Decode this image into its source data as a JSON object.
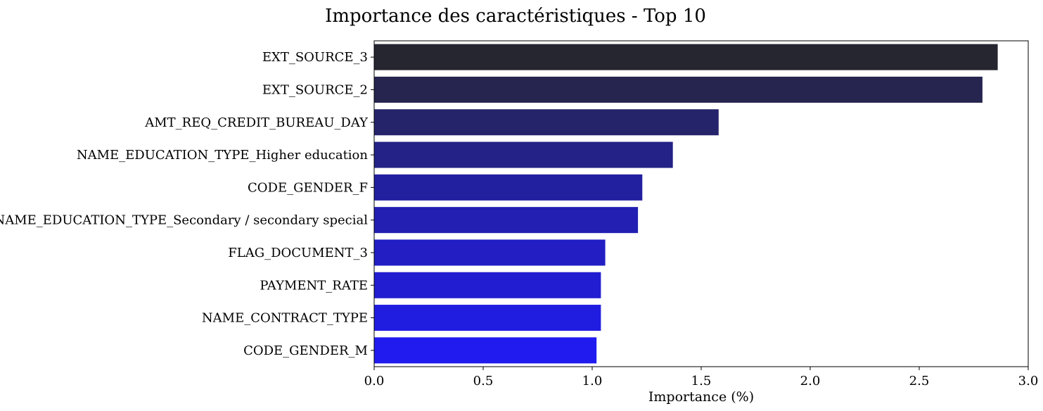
{
  "chart_data": {
    "type": "bar",
    "orientation": "horizontal",
    "title": "Importance des caractéristiques - Top 10",
    "xlabel": "Importance (%)",
    "ylabel": "",
    "xlim": [
      0,
      3.0
    ],
    "xticks": [
      "0.0",
      "0.5",
      "1.0",
      "1.5",
      "2.0",
      "2.5",
      "3.0"
    ],
    "grid": false,
    "categories": [
      "EXT_SOURCE_3",
      "EXT_SOURCE_2",
      "AMT_REQ_CREDIT_BUREAU_DAY",
      "NAME_EDUCATION_TYPE_Higher education",
      "CODE_GENDER_F",
      "NAME_EDUCATION_TYPE_Secondary / secondary special",
      "FLAG_DOCUMENT_3",
      "PAYMENT_RATE",
      "NAME_CONTRACT_TYPE",
      "CODE_GENDER_M"
    ],
    "values": [
      2.86,
      2.79,
      1.58,
      1.37,
      1.23,
      1.21,
      1.06,
      1.04,
      1.04,
      1.02
    ],
    "colors": [
      "#262631",
      "#262550",
      "#25246b",
      "#242287",
      "#2320a0",
      "#221fb2",
      "#221ec4",
      "#221dd0",
      "#211de0",
      "#211bef"
    ]
  }
}
